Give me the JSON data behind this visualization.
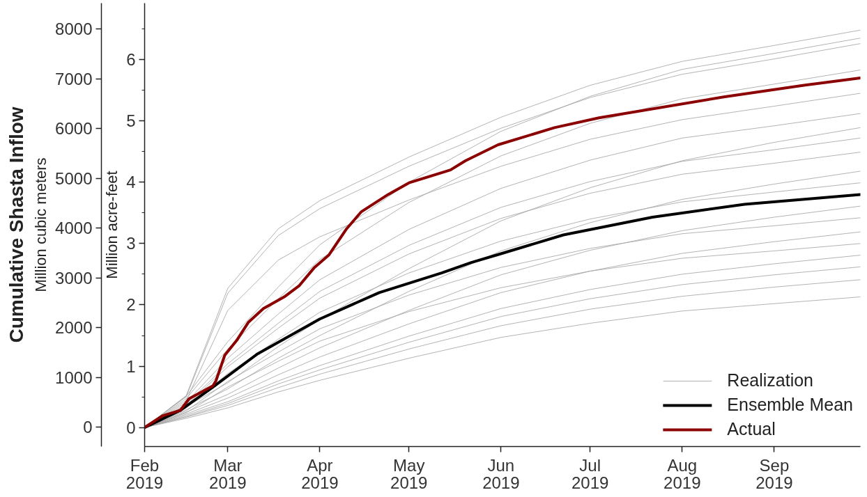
{
  "chart_data": {
    "type": "line",
    "title": "Cumulative Shasta Inflow",
    "ylabel": "Million acre-feet",
    "y2label": "Million cubic meters",
    "xlim": [
      "2019-02-01",
      "2019-09-30"
    ],
    "xticks": [
      {
        "value": "2019-02-01",
        "label": "Feb\n2019"
      },
      {
        "value": "2019-03-01",
        "label": "Mar\n2019"
      },
      {
        "value": "2019-04-01",
        "label": "Apr\n2019"
      },
      {
        "value": "2019-05-01",
        "label": "May\n2019"
      },
      {
        "value": "2019-06-01",
        "label": "Jun\n2019"
      },
      {
        "value": "2019-07-01",
        "label": "Jul\n2019"
      },
      {
        "value": "2019-08-01",
        "label": "Aug\n2019"
      },
      {
        "value": "2019-09-01",
        "label": "Sep\n2019"
      }
    ],
    "ylim": [
      -0.31,
      6.92
    ],
    "yticks": [
      0,
      {
        "value": 0.5,
        "label": null
      },
      1,
      {
        "value": 1.5,
        "label": null
      },
      2,
      {
        "value": 2.5,
        "label": null
      },
      3,
      {
        "value": 3.5,
        "label": null
      },
      4,
      {
        "value": 4.5,
        "label": null
      },
      5,
      {
        "value": 5.5,
        "label": null
      },
      6,
      {
        "value": 6.5,
        "label": null
      }
    ],
    "y2lim": [
      -387,
      8522
    ],
    "y2ticks": [
      0,
      1000,
      2000,
      3000,
      4000,
      5000,
      6000,
      7000,
      8000
    ],
    "grid": false,
    "legend": "bottom right",
    "line_style": "solid",
    "marker": "none",
    "x": [
      "2019-02-01",
      "2019-02-15",
      "2019-03-01",
      "2019-03-18",
      "2019-04-01",
      "2019-05-01",
      "2019-06-01",
      "2019-07-01",
      "2019-08-01",
      "2019-09-01",
      "2019-09-30"
    ],
    "series": [
      {
        "name": "Realization",
        "color": "#a0a0a0",
        "values": [
          0,
          0.52,
          2.27,
          3.24,
          3.7,
          4.41,
          5.06,
          5.58,
          5.97,
          6.23,
          6.48
        ]
      },
      {
        "color": "#a0a0a0",
        "values": [
          0,
          0.51,
          1.4,
          2.29,
          2.98,
          4.0,
          4.83,
          5.4,
          5.84,
          6.1,
          6.35
        ]
      },
      {
        "color": "#a0a0a0",
        "values": [
          0,
          0.5,
          2.19,
          3.13,
          3.57,
          4.26,
          4.88,
          5.38,
          5.76,
          6.01,
          6.26
        ]
      },
      {
        "color": "#a0a0a0",
        "values": [
          0,
          0.47,
          1.28,
          2.1,
          2.74,
          3.67,
          4.43,
          4.96,
          5.36,
          5.6,
          5.83
        ]
      },
      {
        "color": "#a0a0a0",
        "values": [
          0,
          0.44,
          1.91,
          2.73,
          3.11,
          3.71,
          4.26,
          4.7,
          5.02,
          5.24,
          5.45
        ]
      },
      {
        "color": "#a0a0a0",
        "values": [
          0,
          0.41,
          1.13,
          1.85,
          2.41,
          3.23,
          3.9,
          4.36,
          4.72,
          4.92,
          5.12
        ]
      },
      {
        "color": "#a0a0a0",
        "values": [
          0,
          0.34,
          0.73,
          1.32,
          1.76,
          2.59,
          3.37,
          3.91,
          4.35,
          4.65,
          4.89
        ]
      },
      {
        "color": "#a0a0a0",
        "values": [
          0,
          0.38,
          1.04,
          1.7,
          2.22,
          2.97,
          3.59,
          4.01,
          4.34,
          4.53,
          4.72
        ]
      },
      {
        "color": "#a0a0a0",
        "values": [
          0,
          0.36,
          0.99,
          1.62,
          2.11,
          2.83,
          3.41,
          3.82,
          4.13,
          4.31,
          4.49
        ]
      },
      {
        "color": "#a0a0a0",
        "values": [
          0,
          0.29,
          0.63,
          1.13,
          1.5,
          2.22,
          2.88,
          3.34,
          3.72,
          3.97,
          4.18
        ]
      },
      {
        "color": "#a0a0a0",
        "values": [
          0,
          0.32,
          0.88,
          1.44,
          1.88,
          2.52,
          3.04,
          3.4,
          3.68,
          3.84,
          3.99
        ]
      },
      {
        "color": "#a0a0a0",
        "values": [
          0,
          0.25,
          0.54,
          0.97,
          1.3,
          1.91,
          2.49,
          2.89,
          3.21,
          3.43,
          3.61
        ]
      },
      {
        "color": "#a0a0a0",
        "values": [
          0,
          0.27,
          0.75,
          1.23,
          1.61,
          2.16,
          2.61,
          2.92,
          3.16,
          3.29,
          3.42
        ]
      },
      {
        "color": "#a0a0a0",
        "values": [
          0,
          0.22,
          0.48,
          0.86,
          1.15,
          1.69,
          2.2,
          2.55,
          2.84,
          3.03,
          3.19
        ]
      },
      {
        "color": "#a0a0a0",
        "values": [
          0,
          0.24,
          0.66,
          1.08,
          1.41,
          1.89,
          2.28,
          2.55,
          2.76,
          2.88,
          3.0
        ]
      },
      {
        "color": "#a0a0a0",
        "values": [
          0,
          0.2,
          0.42,
          0.76,
          1.01,
          1.49,
          1.94,
          2.25,
          2.5,
          2.67,
          2.81
        ]
      },
      {
        "color": "#a0a0a0",
        "values": [
          0,
          0.18,
          0.39,
          0.71,
          0.94,
          1.39,
          1.81,
          2.1,
          2.33,
          2.49,
          2.62
        ]
      },
      {
        "color": "#a0a0a0",
        "values": [
          0,
          0.17,
          0.36,
          0.65,
          0.87,
          1.28,
          1.66,
          1.93,
          2.14,
          2.29,
          2.41
        ]
      },
      {
        "color": "#a0a0a0",
        "values": [
          0,
          0.15,
          0.32,
          0.58,
          0.77,
          1.13,
          1.47,
          1.7,
          1.9,
          2.02,
          2.13
        ]
      },
      {
        "name": "Ensemble Mean",
        "color": "#000000",
        "x": [
          "2019-02-01",
          "2019-02-13",
          "2019-02-24",
          "2019-03-11",
          "2019-04-01",
          "2019-04-21",
          "2019-05-12",
          "2019-05-22",
          "2019-05-31",
          "2019-06-22",
          "2019-07-22",
          "2019-08-22",
          "2019-09-30"
        ],
        "values": [
          0,
          0.28,
          0.66,
          1.2,
          1.77,
          2.2,
          2.52,
          2.69,
          2.82,
          3.14,
          3.43,
          3.64,
          3.8
        ]
      },
      {
        "name": "Actual",
        "color": "#8b0000",
        "x": [
          "2019-02-01",
          "2019-02-07",
          "2019-02-13",
          "2019-02-16",
          "2019-02-24",
          "2019-02-25",
          "2019-02-28",
          "2019-03-04",
          "2019-03-08",
          "2019-03-13",
          "2019-03-20",
          "2019-03-25",
          "2019-03-30",
          "2019-04-04",
          "2019-04-10",
          "2019-04-15",
          "2019-04-24",
          "2019-05-01",
          "2019-05-15",
          "2019-05-20",
          "2019-05-31",
          "2019-06-19",
          "2019-07-04",
          "2019-08-15",
          "2019-09-11",
          "2019-09-30"
        ],
        "values": [
          0,
          0.19,
          0.28,
          0.47,
          0.68,
          0.76,
          1.18,
          1.42,
          1.72,
          1.94,
          2.13,
          2.31,
          2.6,
          2.81,
          3.24,
          3.52,
          3.8,
          3.99,
          4.2,
          4.35,
          4.61,
          4.89,
          5.05,
          5.39,
          5.58,
          5.7
        ]
      }
    ]
  }
}
